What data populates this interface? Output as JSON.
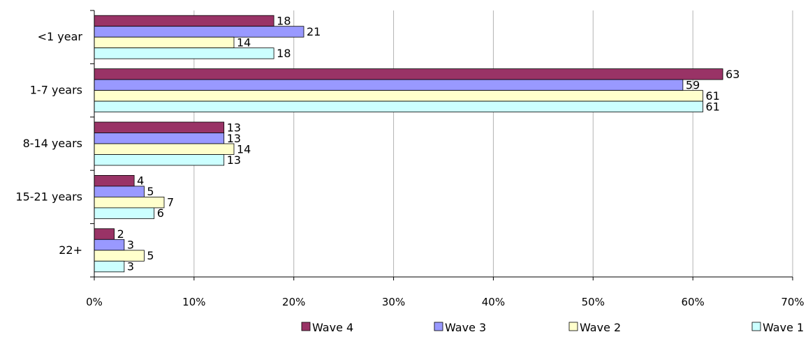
{
  "chart_data": {
    "type": "bar",
    "orientation": "horizontal",
    "categories": [
      "<1 year",
      "1-7 years",
      "8-14 years",
      "15-21 years",
      "22+"
    ],
    "series": [
      {
        "name": "Wave 4",
        "color": "#993366",
        "values": [
          18,
          63,
          13,
          4,
          2
        ]
      },
      {
        "name": "Wave 3",
        "color": "#9999FF",
        "values": [
          21,
          59,
          13,
          5,
          3
        ]
      },
      {
        "name": "Wave 2",
        "color": "#FFFFCC",
        "values": [
          14,
          61,
          14,
          7,
          5
        ]
      },
      {
        "name": "Wave 1",
        "color": "#CCFFFF",
        "values": [
          18,
          61,
          13,
          6,
          3
        ]
      }
    ],
    "xlim": [
      0,
      70
    ],
    "x_ticks": [
      "0%",
      "10%",
      "20%",
      "30%",
      "40%",
      "50%",
      "60%",
      "70%"
    ],
    "grid": true,
    "legend": "bottom",
    "title": "",
    "xlabel": "",
    "ylabel": ""
  }
}
